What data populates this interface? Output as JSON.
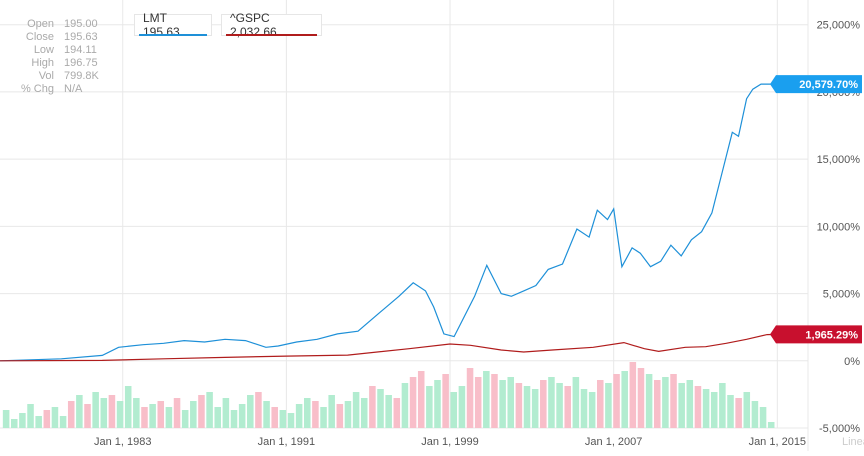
{
  "quote_panel": {
    "rows": [
      {
        "label": "Open",
        "value": "195.00"
      },
      {
        "label": "Close",
        "value": "195.63"
      },
      {
        "label": "Low",
        "value": "194.11"
      },
      {
        "label": "High",
        "value": "196.75"
      },
      {
        "label": "Vol",
        "value": "799.8K"
      },
      {
        "label": "% Chg",
        "value": "N/A"
      }
    ]
  },
  "legend": [
    {
      "label": "LMT 195.63",
      "color": "#1e90d8"
    },
    {
      "label": "^GSPC 2,032.66",
      "color": "#b01c1c"
    }
  ],
  "scale_label": "Linear",
  "last_labels": [
    {
      "text": "20,579.70%",
      "color": "#1a9fef",
      "value": 20579.7
    },
    {
      "text": "1,965.29%",
      "color": "#c8102e",
      "value": 1965.29
    }
  ],
  "chart_data": {
    "type": "line",
    "x_tick_labels": [
      "Jan 1, 1983",
      "Jan 1, 1991",
      "Jan 1, 1999",
      "Jan 1, 2007",
      "Jan 1, 2015"
    ],
    "x_ticks": [
      1983,
      1991,
      1999,
      2007,
      2015
    ],
    "xlim": [
      1977.0,
      2016.5
    ],
    "y_tick_labels": [
      "25,000%",
      "20,000%",
      "15,000%",
      "10,000%",
      "5,000%",
      "0%",
      "-5,000%"
    ],
    "y_ticks": [
      25000,
      20000,
      15000,
      10000,
      5000,
      0,
      -5000
    ],
    "ylim": [
      -5000,
      25500
    ],
    "grid": true,
    "series": [
      {
        "name": "LMT",
        "color": "#1e90d8",
        "x": [
          1977.0,
          1980.0,
          1982.0,
          1982.8,
          1984.0,
          1985.0,
          1986.0,
          1987.0,
          1988.0,
          1989.0,
          1990.0,
          1990.6,
          1991.5,
          1992.5,
          1993.5,
          1994.5,
          1995.5,
          1996.5,
          1997.2,
          1997.8,
          1998.2,
          1998.7,
          1999.2,
          1999.6,
          2000.2,
          2000.8,
          2001.5,
          2002.0,
          2002.6,
          2003.2,
          2003.8,
          2004.5,
          2005.2,
          2005.8,
          2006.2,
          2006.7,
          2007.0,
          2007.4,
          2007.9,
          2008.3,
          2008.8,
          2009.3,
          2009.8,
          2010.3,
          2010.8,
          2011.3,
          2011.8,
          2012.3,
          2012.8,
          2013.1,
          2013.5,
          2013.8,
          2014.2,
          2014.6,
          2015.0
        ],
        "values": [
          0,
          150,
          400,
          1000,
          1200,
          1300,
          1500,
          1400,
          1600,
          1500,
          1000,
          1100,
          1400,
          1600,
          2000,
          2200,
          3500,
          4800,
          5800,
          5200,
          4000,
          2000,
          1800,
          3000,
          4800,
          7100,
          5000,
          4800,
          5200,
          5600,
          6800,
          7200,
          9800,
          9200,
          11200,
          10500,
          11300,
          7000,
          8400,
          8000,
          7000,
          7400,
          8600,
          7800,
          9000,
          9600,
          11000,
          14000,
          17000,
          16700,
          19500,
          20200,
          20580,
          20580,
          20580
        ]
      },
      {
        "name": "^GSPC",
        "color": "#b01c1c",
        "x": [
          1977.0,
          1982.0,
          1985.0,
          1988.0,
          1991.0,
          1994.0,
          1997.0,
          1999.0,
          2000.0,
          2001.5,
          2002.6,
          2004.0,
          2006.0,
          2007.5,
          2008.5,
          2009.2,
          2010.5,
          2011.5,
          2012.5,
          2013.5,
          2014.5,
          2015.0
        ],
        "values": [
          0,
          30,
          150,
          250,
          350,
          420,
          900,
          1250,
          1150,
          800,
          650,
          800,
          1000,
          1350,
          900,
          700,
          1000,
          1050,
          1300,
          1600,
          1950,
          1965
        ]
      }
    ],
    "volume_bars": [
      {
        "height_frac": 0.3,
        "up": true
      },
      {
        "height_frac": 0.15,
        "up": true
      },
      {
        "height_frac": 0.25,
        "up": true
      },
      {
        "height_frac": 0.4,
        "up": true
      },
      {
        "height_frac": 0.2,
        "up": true
      },
      {
        "height_frac": 0.3,
        "up": false
      },
      {
        "height_frac": 0.35,
        "up": true
      },
      {
        "height_frac": 0.2,
        "up": true
      },
      {
        "height_frac": 0.45,
        "up": false
      },
      {
        "height_frac": 0.55,
        "up": true
      },
      {
        "height_frac": 0.4,
        "up": false
      },
      {
        "height_frac": 0.6,
        "up": true
      },
      {
        "height_frac": 0.5,
        "up": true
      },
      {
        "height_frac": 0.55,
        "up": false
      },
      {
        "height_frac": 0.45,
        "up": true
      },
      {
        "height_frac": 0.7,
        "up": true
      },
      {
        "height_frac": 0.5,
        "up": true
      },
      {
        "height_frac": 0.35,
        "up": false
      },
      {
        "height_frac": 0.4,
        "up": true
      },
      {
        "height_frac": 0.45,
        "up": false
      },
      {
        "height_frac": 0.35,
        "up": true
      },
      {
        "height_frac": 0.5,
        "up": false
      },
      {
        "height_frac": 0.3,
        "up": true
      },
      {
        "height_frac": 0.45,
        "up": true
      },
      {
        "height_frac": 0.55,
        "up": false
      },
      {
        "height_frac": 0.6,
        "up": true
      },
      {
        "height_frac": 0.35,
        "up": true
      },
      {
        "height_frac": 0.5,
        "up": true
      },
      {
        "height_frac": 0.3,
        "up": true
      },
      {
        "height_frac": 0.4,
        "up": true
      },
      {
        "height_frac": 0.55,
        "up": true
      },
      {
        "height_frac": 0.6,
        "up": false
      },
      {
        "height_frac": 0.45,
        "up": true
      },
      {
        "height_frac": 0.35,
        "up": false
      },
      {
        "height_frac": 0.3,
        "up": true
      },
      {
        "height_frac": 0.25,
        "up": true
      },
      {
        "height_frac": 0.4,
        "up": true
      },
      {
        "height_frac": 0.5,
        "up": true
      },
      {
        "height_frac": 0.45,
        "up": false
      },
      {
        "height_frac": 0.35,
        "up": true
      },
      {
        "height_frac": 0.55,
        "up": true
      },
      {
        "height_frac": 0.4,
        "up": false
      },
      {
        "height_frac": 0.45,
        "up": true
      },
      {
        "height_frac": 0.6,
        "up": true
      },
      {
        "height_frac": 0.5,
        "up": true
      },
      {
        "height_frac": 0.7,
        "up": false
      },
      {
        "height_frac": 0.65,
        "up": true
      },
      {
        "height_frac": 0.55,
        "up": true
      },
      {
        "height_frac": 0.5,
        "up": false
      },
      {
        "height_frac": 0.75,
        "up": true
      },
      {
        "height_frac": 0.85,
        "up": false
      },
      {
        "height_frac": 0.95,
        "up": false
      },
      {
        "height_frac": 0.7,
        "up": true
      },
      {
        "height_frac": 0.8,
        "up": true
      },
      {
        "height_frac": 0.9,
        "up": false
      },
      {
        "height_frac": 0.6,
        "up": true
      },
      {
        "height_frac": 0.7,
        "up": true
      },
      {
        "height_frac": 1.0,
        "up": false
      },
      {
        "height_frac": 0.85,
        "up": false
      },
      {
        "height_frac": 0.95,
        "up": true
      },
      {
        "height_frac": 0.9,
        "up": false
      },
      {
        "height_frac": 0.8,
        "up": true
      },
      {
        "height_frac": 0.85,
        "up": true
      },
      {
        "height_frac": 0.75,
        "up": false
      },
      {
        "height_frac": 0.7,
        "up": true
      },
      {
        "height_frac": 0.65,
        "up": true
      },
      {
        "height_frac": 0.8,
        "up": false
      },
      {
        "height_frac": 0.85,
        "up": true
      },
      {
        "height_frac": 0.75,
        "up": true
      },
      {
        "height_frac": 0.7,
        "up": false
      },
      {
        "height_frac": 0.85,
        "up": true
      },
      {
        "height_frac": 0.65,
        "up": true
      },
      {
        "height_frac": 0.6,
        "up": true
      },
      {
        "height_frac": 0.8,
        "up": false
      },
      {
        "height_frac": 0.75,
        "up": true
      },
      {
        "height_frac": 0.9,
        "up": false
      },
      {
        "height_frac": 0.95,
        "up": true
      },
      {
        "height_frac": 1.1,
        "up": false
      },
      {
        "height_frac": 1.0,
        "up": false
      },
      {
        "height_frac": 0.9,
        "up": true
      },
      {
        "height_frac": 0.8,
        "up": false
      },
      {
        "height_frac": 0.85,
        "up": true
      },
      {
        "height_frac": 0.9,
        "up": false
      },
      {
        "height_frac": 0.75,
        "up": true
      },
      {
        "height_frac": 0.8,
        "up": true
      },
      {
        "height_frac": 0.7,
        "up": false
      },
      {
        "height_frac": 0.65,
        "up": true
      },
      {
        "height_frac": 0.6,
        "up": true
      },
      {
        "height_frac": 0.75,
        "up": true
      },
      {
        "height_frac": 0.55,
        "up": true
      },
      {
        "height_frac": 0.5,
        "up": false
      },
      {
        "height_frac": 0.6,
        "up": true
      },
      {
        "height_frac": 0.45,
        "up": true
      },
      {
        "height_frac": 0.35,
        "up": true
      },
      {
        "height_frac": 0.1,
        "up": true
      }
    ]
  }
}
